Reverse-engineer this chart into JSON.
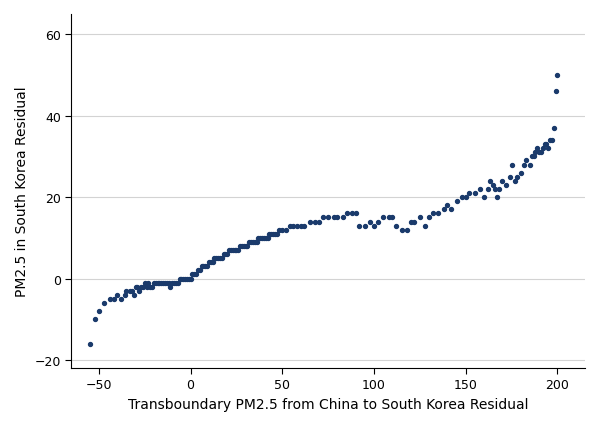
{
  "title": "",
  "xlabel": "Transboundary PM2.5 from China to South Korea Residual",
  "ylabel": "PM2.5 in South Korea Residual",
  "xlim": [
    -65,
    215
  ],
  "ylim": [
    -22,
    65
  ],
  "xticks": [
    -50,
    0,
    50,
    100,
    150,
    200
  ],
  "yticks": [
    -20,
    0,
    20,
    40,
    60
  ],
  "dot_color": "#1a3a6b",
  "dot_size": 8,
  "x": [
    -55,
    -52,
    -50,
    -47,
    -44,
    -42,
    -40,
    -38,
    -36,
    -35,
    -33,
    -32,
    -31,
    -30,
    -29,
    -28,
    -27,
    -26,
    -25,
    -24,
    -23,
    -22,
    -21,
    -20,
    -19,
    -18,
    -17,
    -16,
    -15,
    -14,
    -13,
    -12,
    -11,
    -10,
    -9,
    -8,
    -7,
    -6,
    -5,
    -4,
    -3,
    -2,
    -1,
    0,
    1,
    2,
    3,
    4,
    5,
    6,
    7,
    8,
    9,
    10,
    11,
    12,
    13,
    14,
    15,
    16,
    17,
    18,
    19,
    20,
    21,
    22,
    23,
    24,
    25,
    26,
    27,
    28,
    29,
    30,
    31,
    32,
    33,
    34,
    35,
    36,
    37,
    38,
    39,
    40,
    41,
    42,
    43,
    44,
    45,
    46,
    47,
    48,
    50,
    52,
    54,
    56,
    58,
    60,
    62,
    65,
    68,
    70,
    72,
    75,
    78,
    80,
    83,
    85,
    88,
    90,
    92,
    95,
    98,
    100,
    102,
    105,
    108,
    110,
    112,
    115,
    118,
    120,
    122,
    125,
    128,
    130,
    132,
    135,
    138,
    140,
    142,
    145,
    148,
    150,
    152,
    155,
    158,
    160,
    162,
    163,
    165,
    166,
    167,
    168,
    170,
    172,
    174,
    175,
    177,
    178,
    180,
    182,
    183,
    185,
    186,
    187,
    188,
    189,
    190,
    191,
    192,
    193,
    194,
    195,
    196,
    197,
    198,
    199,
    200
  ],
  "y": [
    -16,
    -10,
    -8,
    -6,
    -5,
    -5,
    -4,
    -5,
    -4,
    -3,
    -3,
    -3,
    -4,
    -2,
    -2,
    -3,
    -2,
    -2,
    -1,
    -2,
    -1,
    -2,
    -2,
    -1,
    -1,
    -1,
    -1,
    -1,
    -1,
    -1,
    -1,
    -1,
    -2,
    -1,
    -1,
    -1,
    -1,
    0,
    0,
    0,
    0,
    0,
    0,
    0,
    1,
    1,
    1,
    2,
    2,
    3,
    3,
    3,
    3,
    4,
    4,
    4,
    5,
    5,
    5,
    5,
    5,
    6,
    6,
    6,
    7,
    7,
    7,
    7,
    7,
    7,
    8,
    8,
    8,
    8,
    8,
    9,
    9,
    9,
    9,
    9,
    10,
    10,
    10,
    10,
    10,
    10,
    11,
    11,
    11,
    11,
    11,
    12,
    12,
    12,
    13,
    13,
    13,
    13,
    13,
    14,
    14,
    14,
    15,
    15,
    15,
    15,
    15,
    16,
    16,
    16,
    13,
    13,
    14,
    13,
    14,
    15,
    15,
    15,
    13,
    12,
    12,
    14,
    14,
    15,
    13,
    15,
    16,
    16,
    17,
    18,
    17,
    19,
    20,
    20,
    21,
    21,
    22,
    20,
    22,
    24,
    23,
    22,
    20,
    22,
    24,
    23,
    25,
    28,
    24,
    25,
    26,
    28,
    29,
    28,
    30,
    30,
    31,
    32,
    31,
    31,
    32,
    33,
    33,
    32,
    34,
    34,
    37,
    46,
    50
  ]
}
